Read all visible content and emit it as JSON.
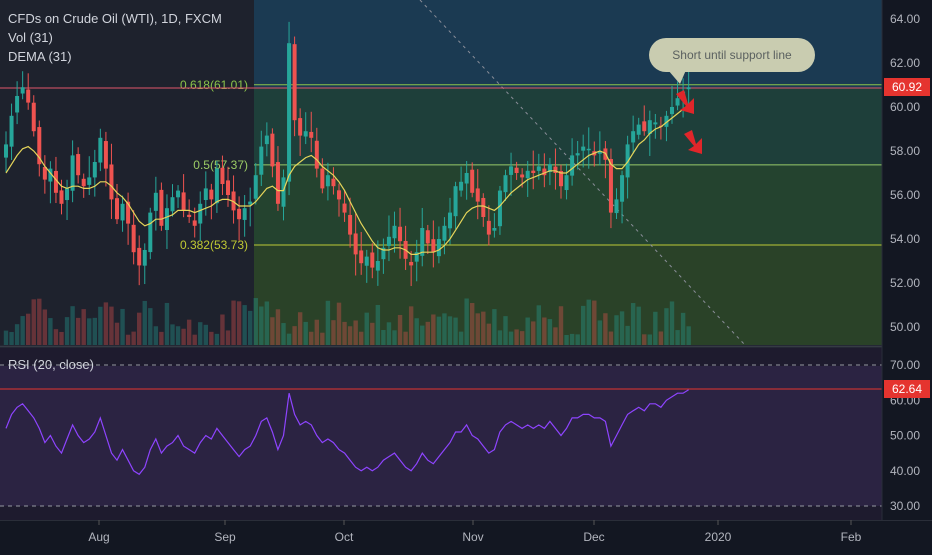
{
  "legend": {
    "title": "CFDs on Crude Oil (WTI), 1D, FXCM",
    "vol": "Vol (31)",
    "dema": "DEMA (31)",
    "rsi": "RSI (20, close)"
  },
  "colors": {
    "up": "#26a69a",
    "down": "#ef5350",
    "dema": "#e6d55a",
    "rsi": "#8e44ff",
    "price_badge": "#e5342f",
    "callout_bg": "#c9ccb0"
  },
  "annotation": {
    "callout": "Short until support line"
  },
  "price_badge": "60.92",
  "rsi_badge": "62.64",
  "chart_data": [
    {
      "type": "candlestick",
      "yaxis": {
        "min": 49.5,
        "max": 64.5,
        "ticks": [
          "64.00",
          "62.00",
          "60.00",
          "58.00",
          "56.00",
          "54.00",
          "52.00",
          "50.00"
        ],
        "tick_values": [
          64,
          62,
          60,
          58,
          56,
          54,
          52,
          50
        ]
      },
      "xaxis": {
        "ticks": [
          "Aug",
          "Sep",
          "Oct",
          "Nov",
          "Dec",
          "2020",
          "Feb"
        ]
      },
      "fib_levels": [
        {
          "label": "0.618(61.01)",
          "value": 61.01
        },
        {
          "label": "0.5(57.37)",
          "value": 57.37
        },
        {
          "label": "0.382(53.73)",
          "value": 53.73
        }
      ],
      "closes": [
        58.3,
        59.6,
        60.5,
        60.9,
        60.2,
        58.9,
        57.4,
        56.7,
        57.2,
        56.1,
        55.6,
        56.3,
        57.8,
        56.9,
        56.4,
        56.8,
        57.5,
        58.6,
        57.2,
        55.8,
        54.9,
        55.6,
        54.7,
        53.4,
        52.8,
        53.5,
        55.2,
        56.1,
        54.6,
        55.4,
        55.9,
        56.2,
        55.3,
        55.0,
        54.6,
        55.6,
        56.3,
        55.8,
        57.2,
        56.5,
        56.0,
        55.3,
        54.9,
        55.4,
        55.7,
        56.9,
        58.2,
        58.7,
        57.3,
        55.6,
        56.8,
        62.9,
        59.4,
        58.7,
        58.9,
        58.6,
        57.2,
        56.3,
        56.9,
        56.4,
        55.8,
        55.2,
        54.2,
        53.3,
        52.9,
        53.2,
        52.7,
        53.0,
        53.6,
        54.1,
        54.6,
        53.9,
        53.1,
        52.8,
        53.4,
        54.5,
        53.8,
        53.4,
        54.0,
        54.6,
        55.2,
        56.4,
        56.6,
        57.0,
        56.1,
        55.7,
        55.0,
        54.2,
        54.5,
        56.2,
        56.9,
        57.3,
        57.0,
        56.8,
        57.1,
        57.0,
        57.3,
        56.9,
        57.4,
        57.0,
        56.4,
        56.9,
        57.8,
        57.9,
        58.2,
        58.1,
        57.8,
        58.0,
        57.6,
        55.2,
        55.8,
        56.9,
        58.3,
        58.9,
        59.2,
        58.9,
        59.4,
        59.3,
        59.1,
        59.6,
        60.0,
        60.4,
        60.7,
        60.9
      ],
      "dema": [
        57.0,
        57.4,
        57.8,
        58.1,
        58.2,
        58.0,
        57.7,
        57.3,
        57.0,
        56.7,
        56.4,
        56.3,
        56.4,
        56.4,
        56.3,
        56.3,
        56.4,
        56.6,
        56.6,
        56.4,
        56.1,
        55.9,
        55.6,
        55.2,
        54.8,
        54.6,
        54.7,
        54.9,
        54.9,
        55.0,
        55.1,
        55.3,
        55.3,
        55.3,
        55.2,
        55.3,
        55.4,
        55.5,
        55.7,
        55.8,
        55.8,
        55.7,
        55.5,
        55.5,
        55.5,
        55.7,
        56.0,
        56.3,
        56.4,
        56.2,
        56.2,
        56.9,
        57.3,
        57.5,
        57.7,
        57.8,
        57.6,
        57.3,
        57.1,
        56.9,
        56.6,
        56.2,
        55.7,
        55.2,
        54.7,
        54.3,
        53.9,
        53.6,
        53.5,
        53.5,
        53.6,
        53.6,
        53.5,
        53.3,
        53.3,
        53.4,
        53.4,
        53.4,
        53.5,
        53.7,
        54.0,
        54.4,
        54.8,
        55.2,
        55.4,
        55.5,
        55.5,
        55.4,
        55.3,
        55.5,
        55.8,
        56.1,
        56.3,
        56.5,
        56.7,
        56.8,
        56.9,
        57.0,
        57.1,
        57.1,
        57.0,
        57.0,
        57.2,
        57.4,
        57.6,
        57.8,
        57.9,
        58.0,
        57.9,
        57.4,
        57.2,
        57.2,
        57.5,
        57.9,
        58.3,
        58.5,
        58.8,
        59.0,
        59.1,
        59.3,
        59.5,
        59.7,
        59.9,
        60.1
      ],
      "rsi": [
        52,
        56,
        58,
        59,
        57,
        55,
        52,
        48,
        50,
        47,
        45,
        49,
        53,
        50,
        48,
        49,
        51,
        55,
        50,
        45,
        43,
        46,
        43,
        40,
        39,
        41,
        46,
        49,
        45,
        47,
        48,
        50,
        47,
        46,
        45,
        48,
        50,
        49,
        52,
        50,
        48,
        46,
        44,
        46,
        47,
        50,
        54,
        55,
        51,
        46,
        50,
        62,
        56,
        53,
        54,
        53,
        50,
        48,
        49,
        48,
        46,
        45,
        43,
        41,
        40,
        41,
        40,
        41,
        43,
        44,
        45,
        43,
        41,
        40,
        42,
        45,
        43,
        42,
        44,
        46,
        48,
        51,
        51,
        53,
        50,
        49,
        47,
        45,
        46,
        51,
        53,
        54,
        53,
        52,
        53,
        52,
        53,
        52,
        54,
        52,
        50,
        52,
        55,
        55,
        56,
        56,
        55,
        55,
        54,
        47,
        50,
        53,
        56,
        57,
        58,
        57,
        59,
        59,
        58,
        60,
        61,
        62,
        62,
        63
      ]
    }
  ]
}
